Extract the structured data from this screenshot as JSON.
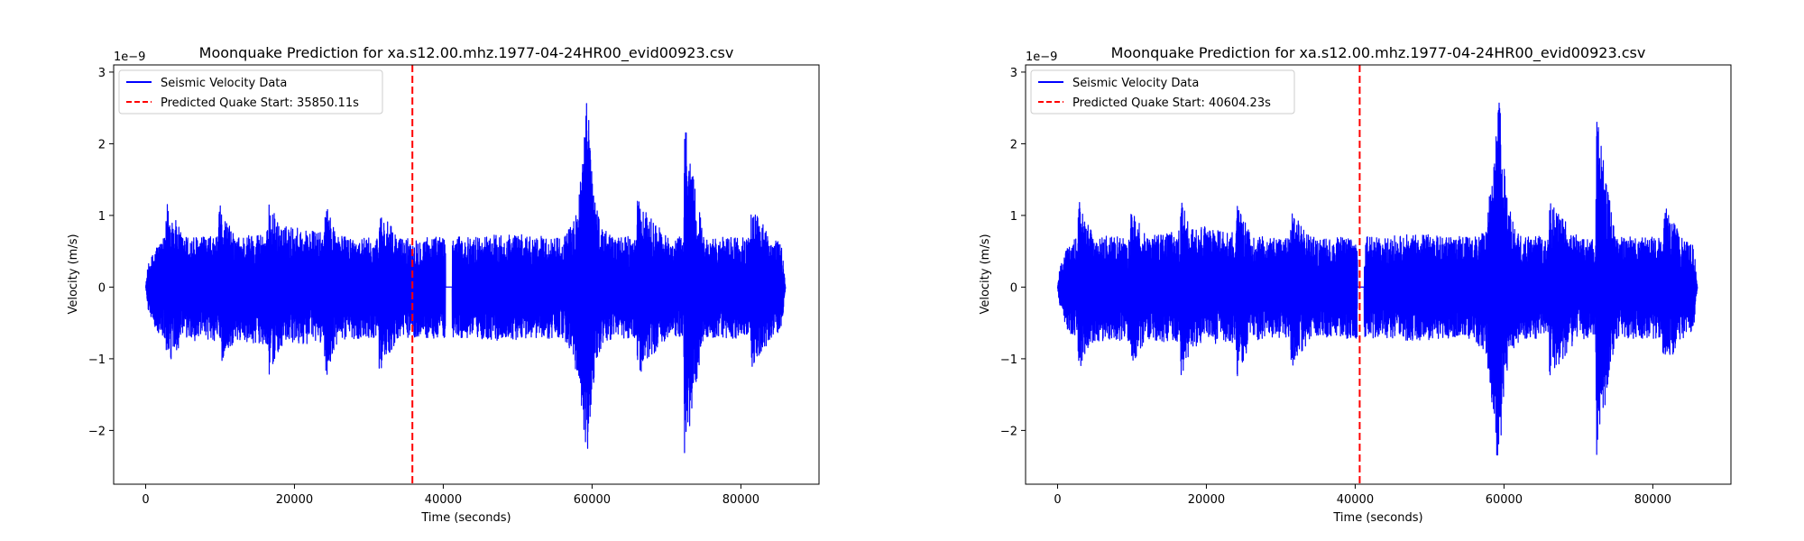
{
  "chart_data": [
    {
      "type": "line",
      "title": "Moonquake Prediction for xa.s12.00.mhz.1977-04-24HR00_evid00923.csv",
      "xlabel": "Time (seconds)",
      "ylabel": "Velocity (m/s)",
      "y_scale_label": "1e−9",
      "xlim": [
        -4300,
        90500
      ],
      "ylim": [
        -2.75,
        3.1
      ],
      "x_ticks": [
        0,
        20000,
        40000,
        60000,
        80000
      ],
      "x_tick_labels": [
        "0",
        "20000",
        "40000",
        "60000",
        "80000"
      ],
      "y_ticks": [
        -2,
        -1,
        0,
        1,
        2,
        3
      ],
      "y_tick_labels": [
        "−2",
        "−1",
        "0",
        "1",
        "2",
        "3"
      ],
      "grid": false,
      "legend_position": "upper-left",
      "series": [
        {
          "name": "Seismic Velocity Data",
          "color": "#0000ff",
          "style": "solid",
          "gap": [
            40300,
            41200
          ],
          "envelope_x": [
            0,
            300,
            1500,
            2700,
            2800,
            5000,
            9800,
            9900,
            12000,
            16500,
            16600,
            18000,
            20000,
            24000,
            24100,
            26000,
            28000,
            31300,
            31400,
            34000,
            36000,
            38000,
            40300,
            41200,
            42000,
            44000,
            48000,
            52000,
            56000,
            57500,
            58500,
            59000,
            59300,
            59800,
            60500,
            61500,
            63000,
            66000,
            66100,
            70000,
            72300,
            72400,
            75000,
            80000,
            81300,
            81400,
            84000,
            85500,
            86000
          ],
          "envelope_upper": [
            0,
            0.3,
            0.6,
            0.7,
            1.22,
            0.72,
            0.7,
            1.17,
            0.7,
            0.8,
            1.22,
            0.85,
            0.85,
            0.75,
            1.17,
            0.72,
            0.7,
            0.68,
            1.08,
            0.7,
            0.68,
            0.72,
            0.7,
            0.72,
            0.7,
            0.7,
            0.75,
            0.72,
            0.7,
            0.9,
            1.6,
            2.2,
            2.85,
            2.0,
            1.2,
            0.8,
            0.72,
            0.7,
            1.22,
            0.7,
            0.7,
            2.45,
            0.7,
            0.7,
            0.68,
            1.18,
            0.7,
            0.6,
            0
          ],
          "envelope_lower": [
            0,
            -0.3,
            -0.65,
            -0.75,
            -1.18,
            -0.75,
            -0.75,
            -1.1,
            -0.75,
            -0.8,
            -1.3,
            -0.85,
            -0.8,
            -0.78,
            -1.3,
            -0.75,
            -0.72,
            -0.7,
            -1.18,
            -0.72,
            -0.7,
            -0.72,
            -0.72,
            -0.72,
            -0.72,
            -0.72,
            -0.75,
            -0.72,
            -0.72,
            -0.95,
            -1.7,
            -2.4,
            -2.5,
            -1.8,
            -1.1,
            -0.8,
            -0.72,
            -0.72,
            -1.25,
            -0.72,
            -0.72,
            -2.42,
            -0.72,
            -0.72,
            -0.7,
            -1.15,
            -0.72,
            -0.6,
            0
          ]
        },
        {
          "name": "Predicted Quake Start: 35850.11s",
          "color": "#ff0000",
          "style": "dashed",
          "x": 35850.11
        }
      ]
    },
    {
      "type": "line",
      "title": "Moonquake Prediction for xa.s12.00.mhz.1977-04-24HR00_evid00923.csv",
      "xlabel": "Time (seconds)",
      "ylabel": "Velocity (m/s)",
      "y_scale_label": "1e−9",
      "xlim": [
        -4300,
        90500
      ],
      "ylim": [
        -2.75,
        3.1
      ],
      "x_ticks": [
        0,
        20000,
        40000,
        60000,
        80000
      ],
      "x_tick_labels": [
        "0",
        "20000",
        "40000",
        "60000",
        "80000"
      ],
      "y_ticks": [
        -2,
        -1,
        0,
        1,
        2,
        3
      ],
      "y_tick_labels": [
        "−2",
        "−1",
        "0",
        "1",
        "2",
        "3"
      ],
      "grid": false,
      "legend_position": "upper-left",
      "series": [
        {
          "name": "Seismic Velocity Data",
          "color": "#0000ff",
          "style": "solid",
          "gap": [
            40300,
            41200
          ],
          "envelope_x": [
            0,
            300,
            1500,
            2700,
            2800,
            5000,
            9800,
            9900,
            12000,
            16500,
            16600,
            18000,
            20000,
            24000,
            24100,
            26000,
            28000,
            31300,
            31400,
            34000,
            36000,
            38000,
            40300,
            41200,
            42000,
            44000,
            48000,
            52000,
            56000,
            57500,
            58500,
            59000,
            59300,
            59800,
            60500,
            61500,
            63000,
            66000,
            66100,
            70000,
            72300,
            72400,
            75000,
            80000,
            81300,
            81400,
            84000,
            85500,
            86000
          ],
          "envelope_upper": [
            0,
            0.3,
            0.6,
            0.7,
            1.22,
            0.72,
            0.7,
            1.17,
            0.7,
            0.8,
            1.22,
            0.85,
            0.85,
            0.75,
            1.17,
            0.72,
            0.7,
            0.68,
            1.08,
            0.7,
            0.68,
            0.72,
            0.7,
            0.72,
            0.7,
            0.7,
            0.75,
            0.72,
            0.7,
            0.9,
            1.6,
            2.2,
            2.85,
            2.0,
            1.2,
            0.8,
            0.72,
            0.7,
            1.22,
            0.7,
            0.7,
            2.45,
            0.7,
            0.7,
            0.68,
            1.18,
            0.7,
            0.6,
            0
          ],
          "envelope_lower": [
            0,
            -0.3,
            -0.65,
            -0.75,
            -1.18,
            -0.75,
            -0.75,
            -1.1,
            -0.75,
            -0.8,
            -1.3,
            -0.85,
            -0.8,
            -0.78,
            -1.3,
            -0.75,
            -0.72,
            -0.7,
            -1.18,
            -0.72,
            -0.7,
            -0.72,
            -0.72,
            -0.72,
            -0.72,
            -0.72,
            -0.75,
            -0.72,
            -0.72,
            -0.95,
            -1.7,
            -2.4,
            -2.5,
            -1.8,
            -1.1,
            -0.8,
            -0.72,
            -0.72,
            -1.25,
            -0.72,
            -0.72,
            -2.42,
            -0.72,
            -0.72,
            -0.7,
            -1.15,
            -0.72,
            -0.6,
            0
          ]
        },
        {
          "name": "Predicted Quake Start: 40604.23s",
          "color": "#ff0000",
          "style": "dashed",
          "x": 40604.23
        }
      ]
    }
  ]
}
